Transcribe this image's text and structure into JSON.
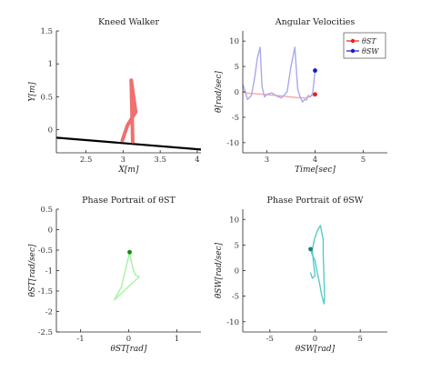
{
  "chart_data": [
    {
      "id": "kneed",
      "type": "line",
      "title": "Kneed Walker",
      "xlabel": "X[m]",
      "ylabel": "Y[m]",
      "xlim": [
        2.1,
        4.05
      ],
      "ylim": [
        -0.35,
        1.5
      ],
      "xticks": [
        2.5,
        3,
        3.5,
        4
      ],
      "xtick_labels": [
        "2.5",
        "3",
        "3.5",
        "4"
      ],
      "yticks": [
        0,
        0.5,
        1,
        1.5
      ],
      "ytick_labels": [
        "0",
        "0.5",
        "1",
        "1.5"
      ],
      "series": [
        {
          "role": "ground",
          "color": "#000000",
          "width": 2.2,
          "x": [
            2.1,
            4.05
          ],
          "y": [
            -0.12,
            -0.3
          ]
        },
        {
          "role": "stance-leg",
          "color": "#ee7070",
          "width": 4,
          "x": [
            3.11,
            3.12,
            3.13
          ],
          "y": [
            0.75,
            0.25,
            -0.18
          ]
        },
        {
          "role": "swing-thigh",
          "color": "#ee7070",
          "width": 4,
          "x": [
            3.11,
            3.17
          ],
          "y": [
            0.75,
            0.27
          ]
        },
        {
          "role": "swing-shank",
          "color": "#ee7070",
          "width": 4,
          "x": [
            3.17,
            3.06,
            2.99
          ],
          "y": [
            0.27,
            0.07,
            -0.16
          ]
        }
      ]
    },
    {
      "id": "angvel",
      "type": "line",
      "title": "Angular Velocities",
      "xlabel": "Time[sec]",
      "ylabel": "θ̇[rad/sec]",
      "xlim": [
        2.5,
        5.5
      ],
      "ylim": [
        -12,
        12
      ],
      "xticks": [
        3,
        4,
        5
      ],
      "xtick_labels": [
        "3",
        "4",
        "5"
      ],
      "yticks": [
        -10,
        -5,
        0,
        5,
        10
      ],
      "ytick_labels": [
        "-10",
        "-5",
        "0",
        "5",
        "10"
      ],
      "legend_position": "top-right",
      "series": [
        {
          "name": "θST",
          "color": "#f5a5a5",
          "marker_color": "#e82020",
          "x": [
            2.5,
            2.6,
            2.8,
            3.0,
            3.2,
            3.4,
            3.6,
            3.8,
            4.0
          ],
          "y": [
            0.0,
            -0.25,
            -0.4,
            -0.55,
            -0.7,
            -0.9,
            -1.1,
            -1.2,
            -0.5
          ]
        },
        {
          "name": "θSW",
          "color": "#a9a9ee",
          "marker_color": "#1818d0",
          "x": [
            2.5,
            2.55,
            2.6,
            2.68,
            2.75,
            2.8,
            2.86,
            2.9,
            2.95,
            3.0,
            3.1,
            3.2,
            3.3,
            3.42,
            3.5,
            3.58,
            3.64,
            3.69,
            3.74,
            3.78,
            3.82,
            3.86,
            3.9,
            3.95,
            4.0
          ],
          "y": [
            1.5,
            0.0,
            -1.5,
            -0.7,
            3.0,
            6.5,
            8.8,
            1.0,
            -1.0,
            -0.5,
            -0.2,
            -0.8,
            -1.2,
            0.0,
            5.0,
            8.8,
            0.5,
            -1.0,
            -2.0,
            -1.5,
            -1.6,
            -0.7,
            -1.0,
            -0.3,
            4.2
          ]
        }
      ]
    },
    {
      "id": "phase_st",
      "type": "line",
      "title": "Phase Portrait of θST",
      "xlabel": "θST[rad]",
      "ylabel": "θ̇ST[rad/sec]",
      "xlim": [
        -1.5,
        1.5
      ],
      "ylim": [
        -2.5,
        0.5
      ],
      "xticks": [
        -1,
        0,
        1
      ],
      "xtick_labels": [
        "-1",
        "0",
        "1"
      ],
      "yticks": [
        -2.5,
        -2,
        -1.5,
        -1,
        -0.5,
        0,
        0.5
      ],
      "ytick_labels": [
        "-2.5",
        "-2",
        "-1.5",
        "-1",
        "-0.5",
        "0",
        "0.5"
      ],
      "series": [
        {
          "color": "#a6f2a6",
          "marker_color": "#0c8c0c",
          "x": [
            0.02,
            0.05,
            0.09,
            0.12,
            0.15,
            0.22,
            -0.3,
            -0.15,
            -0.05,
            0.02
          ],
          "y": [
            -0.55,
            -0.75,
            -0.95,
            -1.05,
            -1.12,
            -1.15,
            -1.72,
            -1.4,
            -0.9,
            -0.55
          ]
        }
      ]
    },
    {
      "id": "phase_sw",
      "type": "line",
      "title": "Phase Portrait of θSW",
      "xlabel": "θSW[rad]",
      "ylabel": "θ̇SW[rad/sec]",
      "xlim": [
        -8,
        8
      ],
      "ylim": [
        -12,
        12
      ],
      "xticks": [
        -5,
        0,
        5
      ],
      "xtick_labels": [
        "-5",
        "0",
        "5"
      ],
      "yticks": [
        -10,
        -5,
        0,
        5,
        10
      ],
      "ytick_labels": [
        "-10",
        "-5",
        "0",
        "5",
        "10"
      ],
      "series": [
        {
          "color": "#5ac9c9",
          "marker_color": "#1a8080",
          "x": [
            -0.5,
            -0.3,
            0.0,
            0.2,
            0.5,
            0.7,
            0.9,
            1.0,
            1.05,
            1.0,
            0.95,
            0.9,
            0.9,
            0.6,
            0.3,
            -0.1,
            -0.3,
            -0.2,
            0.0,
            -0.3,
            -0.5
          ],
          "y": [
            4.2,
            3.0,
            2.0,
            0.0,
            -2.5,
            -4.5,
            -6.0,
            -6.5,
            -5.0,
            -2.0,
            0.5,
            3.0,
            6.0,
            8.8,
            8.0,
            6.0,
            4.0,
            2.0,
            -1.0,
            -1.5,
            -0.5
          ]
        }
      ]
    }
  ]
}
